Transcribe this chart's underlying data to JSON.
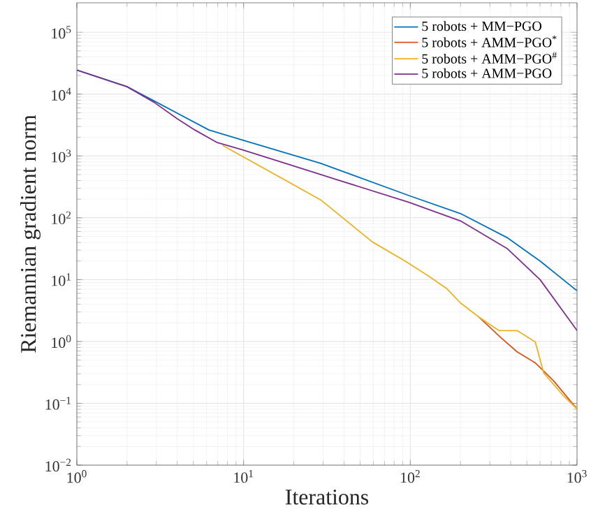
{
  "chart_data": {
    "type": "line",
    "xlabel": "Iterations",
    "ylabel": "Riemannian gradient norm",
    "log": "xy",
    "grid": true,
    "legend": "top right",
    "marker": "none",
    "line_style": "solid",
    "xlim": [
      1,
      1000
    ],
    "ylim": [
      0.01,
      300000
    ],
    "xticks": [
      {
        "value": 1,
        "label": "10$^{0}$"
      },
      {
        "value": 10,
        "label": "10$^{1}$"
      },
      {
        "value": 100,
        "label": "10$^{2}$"
      },
      {
        "value": 1000,
        "label": "10$^{3}$"
      }
    ],
    "yticks": [
      {
        "value": 0.01,
        "label": "10$^{−2}$"
      },
      {
        "value": 0.1,
        "label": "10$^{−1}$"
      },
      {
        "value": 1,
        "label": "10$^{0}$"
      },
      {
        "value": 10,
        "label": "10$^{1}$"
      },
      {
        "value": 100,
        "label": "10$^{2}$"
      },
      {
        "value": 1000,
        "label": "10$^{3}$"
      },
      {
        "value": 10000,
        "label": "10$^{4}$"
      },
      {
        "value": 100000,
        "label": "10$^{5}$"
      }
    ],
    "series": [
      {
        "name": "5 robots + MM−PGO",
        "color": "#0072bd",
        "x": [
          1,
          2,
          2.9,
          6.2,
          9.8,
          29,
          98,
          200,
          380,
          600,
          1000
        ],
        "values": [
          24500,
          13200,
          7800,
          2630,
          1820,
          760,
          229,
          117,
          48,
          20,
          6.6
        ]
      },
      {
        "name": "5 robots + AMM−PGO$^{*}$",
        "color": "#d95319",
        "x": [
          257,
          350,
          437,
          562,
          724,
          1000
        ],
        "values": [
          2.5,
          1.15,
          0.68,
          0.45,
          0.23,
          0.081
        ]
      },
      {
        "name": "5 robots + AMM−PGO$^{#}$",
        "color": "#edb120",
        "x": [
          7.5,
          29,
          59,
          93,
          130,
          166,
          200,
          257,
          340,
          437,
          562,
          631,
          813,
          1000
        ],
        "values": [
          1480,
          195,
          41,
          20,
          11.2,
          7.1,
          4.2,
          2.5,
          1.5,
          1.5,
          0.98,
          0.31,
          0.14,
          0.081
        ]
      },
      {
        "name": "5 robots + AMM−PGO",
        "color": "#7e2f8e",
        "x": [
          1,
          2,
          2.9,
          4,
          5.1,
          6.9,
          9.8,
          16,
          29,
          98,
          200,
          380,
          600,
          1000
        ],
        "values": [
          24500,
          13200,
          7400,
          4000,
          2630,
          1660,
          1260,
          830,
          500,
          178,
          89,
          32,
          10,
          1.5
        ]
      }
    ]
  }
}
